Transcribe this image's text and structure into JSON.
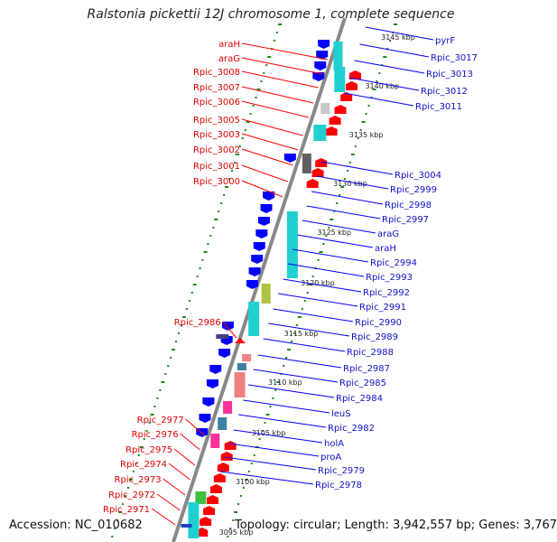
{
  "title": "Ralstonia pickettii 12J chromosome 1, complete sequence",
  "accession": "Accession: NC_010682",
  "summary": "Topology: circular; Length: 3,942,557 bp; Genes: 3,767",
  "scale_labels": [
    "3145 kbp",
    "3140 kbp",
    "3135 kbp",
    "3130 kbp",
    "3125 kbp",
    "3120 kbp",
    "3115 kbp",
    "3110 kbp",
    "3105 kbp",
    "3100 kbp",
    "3095 kbp"
  ],
  "left_genes": [
    "araH",
    "araG",
    "Rpic_3008",
    "Rpic_3007",
    "Rpic_3006",
    "Rpic_3005",
    "Rpic_3003",
    "Rpic_3002",
    "Rpic_3001",
    "Rpic_3000",
    "Rpic_2986",
    "Rpic_2977",
    "Rpic_2976",
    "Rpic_2975",
    "Rpic_2974",
    "Rpic_2973",
    "Rpic_2972",
    "Rpic_2971"
  ],
  "right_genes": [
    "pyrF",
    "Rpic_3017",
    "Rpic_3013",
    "Rpic_3012",
    "Rpic_3011",
    "Rpic_3004",
    "Rpic_2999",
    "Rpic_2998",
    "Rpic_2997",
    "araG",
    "araH",
    "Rpic_2994",
    "Rpic_2993",
    "Rpic_2992",
    "Rpic_2991",
    "Rpic_2990",
    "Rpic_2989",
    "Rpic_2988",
    "Rpic_2987",
    "Rpic_2985",
    "Rpic_2984",
    "leuS",
    "Rpic_2982",
    "holA",
    "proA",
    "Rpic_2979",
    "Rpic_2978"
  ],
  "colors": {
    "forward_gene": "#ff0000",
    "reverse_gene": "#0000ff",
    "cds_block": "#20d0d0",
    "rrna_block": "#f08080",
    "misc_block": "#ff3399",
    "backbone": "#808080",
    "ruler": "#1a8a1a"
  }
}
